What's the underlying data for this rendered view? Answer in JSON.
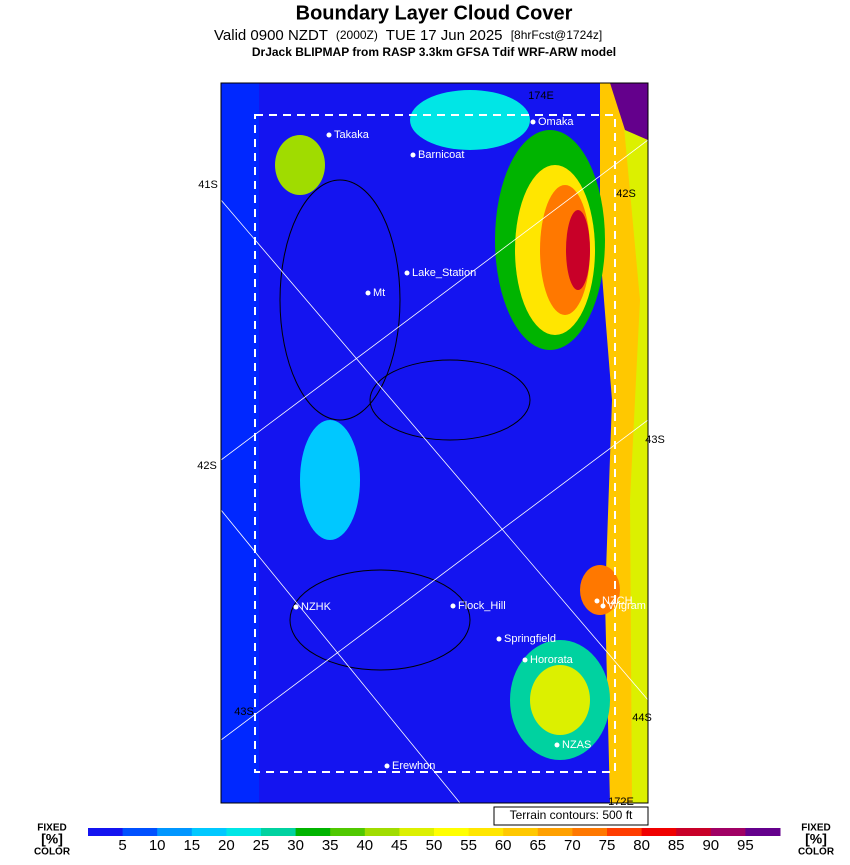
{
  "header": {
    "title": "Boundary Layer Cloud Cover",
    "valid": "Valid 0900 NZDT",
    "utc": "(2000Z)",
    "date": "TUE 17 Jun 2025",
    "forecast": "[8hrFcst@1724z]",
    "model": "DrJack BLIPMAP from RASP 3.3km GFSA Tdif WRF-ARW model"
  },
  "map": {
    "latlon": [
      "41S",
      "42S",
      "43S",
      "42S",
      "43S",
      "44S",
      "174E",
      "172E"
    ],
    "sites": [
      "Takaka",
      "Barnicoat",
      "Omaka",
      "Lake_Station",
      "Mt",
      "NZHK",
      "Flock_Hill",
      "NZCH",
      "Wigram",
      "Springfield",
      "Hororata",
      "NZAS",
      "Erewhon"
    ],
    "terrain_note": "Terrain contours: 500 ft"
  },
  "colorbar": {
    "left_label": [
      "FIXED",
      "[%]",
      "COLOR"
    ],
    "right_label": [
      "FIXED",
      "[%]",
      "COLOR"
    ],
    "ticks": [
      5,
      10,
      15,
      20,
      25,
      30,
      35,
      40,
      45,
      50,
      55,
      60,
      65,
      70,
      75,
      80,
      85,
      90,
      95
    ],
    "colors": [
      "#1414f0",
      "#0050ff",
      "#0096ff",
      "#00c8ff",
      "#00e6e6",
      "#00d2a0",
      "#00b400",
      "#50c800",
      "#a0dc00",
      "#dcf000",
      "#ffff00",
      "#ffe600",
      "#ffc800",
      "#ffa000",
      "#ff7800",
      "#ff3c00",
      "#f00000",
      "#c80028",
      "#a00064",
      "#64008c"
    ]
  }
}
